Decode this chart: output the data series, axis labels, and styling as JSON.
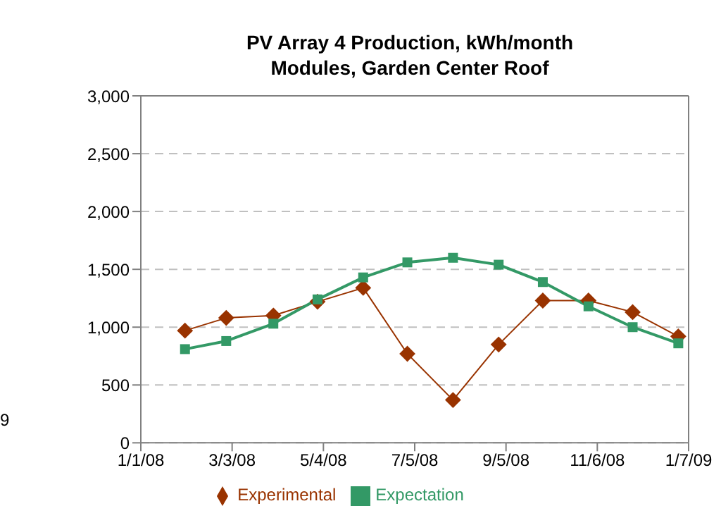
{
  "chart_data": {
    "type": "line",
    "title": "PV Array 4 Production, kWh/month",
    "subtitle": "Modules, Garden Center Roof",
    "x": [
      "2008-01-31",
      "2008-02-28",
      "2008-03-31",
      "2008-04-30",
      "2008-05-31",
      "2008-06-30",
      "2008-07-31",
      "2008-08-31",
      "2008-09-30",
      "2008-10-31",
      "2008-11-30",
      "2008-12-31"
    ],
    "series": [
      {
        "name": "Experimental",
        "color": "#993300",
        "marker": "diamond",
        "values": [
          970,
          1080,
          1100,
          1220,
          1340,
          770,
          370,
          850,
          1230,
          1230,
          1130,
          920
        ]
      },
      {
        "name": "Expectation",
        "color": "#339966",
        "marker": "square",
        "values": [
          810,
          880,
          1030,
          1240,
          1430,
          1560,
          1600,
          1540,
          1390,
          1180,
          1000,
          860
        ]
      }
    ],
    "xlim": [
      "2008-01-01",
      "2009-01-07"
    ],
    "xticks": [
      {
        "value": "2008-01-01",
        "label": "1/1/08"
      },
      {
        "value": "2008-03-03",
        "label": "3/3/08"
      },
      {
        "value": "2008-05-04",
        "label": "5/4/08"
      },
      {
        "value": "2008-07-05",
        "label": "7/5/08"
      },
      {
        "value": "2008-09-05",
        "label": "9/5/08"
      },
      {
        "value": "2008-11-06",
        "label": "11/6/08"
      },
      {
        "value": "2009-01-07",
        "label": "1/7/09"
      }
    ],
    "ylim": [
      0,
      3000
    ],
    "yticks": [
      0,
      500,
      {
        "value": 1000,
        "label": "1,000"
      },
      {
        "value": 1500,
        "label": "1,500"
      },
      {
        "value": 2000,
        "label": "2,000"
      },
      {
        "value": 2500,
        "label": "2,500"
      },
      {
        "value": 3000,
        "label": "3,000"
      }
    ],
    "grid": "y",
    "legend": "bottom",
    "line_style": "solid",
    "annotations": [
      "9"
    ]
  }
}
